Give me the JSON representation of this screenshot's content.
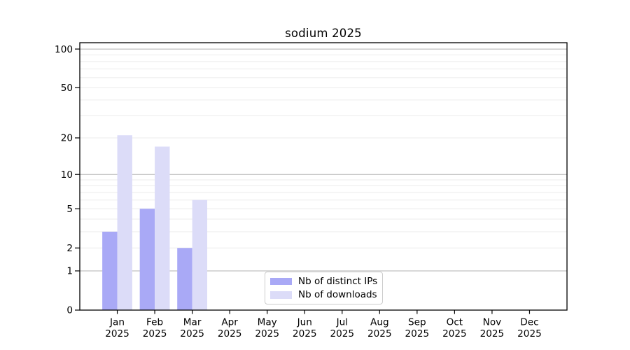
{
  "chart_data": {
    "type": "bar",
    "title": "sodium 2025",
    "xlabel": "",
    "ylabel": "",
    "year_label": "2025",
    "categories": [
      "Jan",
      "Feb",
      "Mar",
      "Apr",
      "May",
      "Jun",
      "Jul",
      "Aug",
      "Sep",
      "Oct",
      "Nov",
      "Dec"
    ],
    "series": [
      {
        "name": "Nb of distinct IPs",
        "color": "#a9a9f6",
        "values": [
          3,
          5,
          2,
          0,
          0,
          0,
          0,
          0,
          0,
          0,
          0,
          0
        ]
      },
      {
        "name": "Nb of downloads",
        "color": "#dcdcf8",
        "values": [
          21,
          17,
          6,
          0,
          0,
          0,
          0,
          0,
          0,
          0,
          0,
          0
        ]
      }
    ],
    "yscale": "log1p",
    "ylim": [
      0,
      112
    ],
    "yticks": [
      0,
      1,
      2,
      5,
      10,
      20,
      50,
      100
    ],
    "grid": {
      "major_values": [
        1,
        10,
        100
      ],
      "minor_values": [
        2,
        3,
        4,
        5,
        6,
        7,
        8,
        9,
        20,
        30,
        40,
        50,
        60,
        70,
        80,
        90
      ],
      "major_color": "#b2b2b2",
      "minor_color": "#ebebeb"
    },
    "legend": {
      "entries": [
        "Nb of distinct IPs",
        "Nb of downloads"
      ],
      "position": "lower center"
    },
    "axis_color": "#000000",
    "text_color": "#000000",
    "background_color": "#ffffff"
  }
}
